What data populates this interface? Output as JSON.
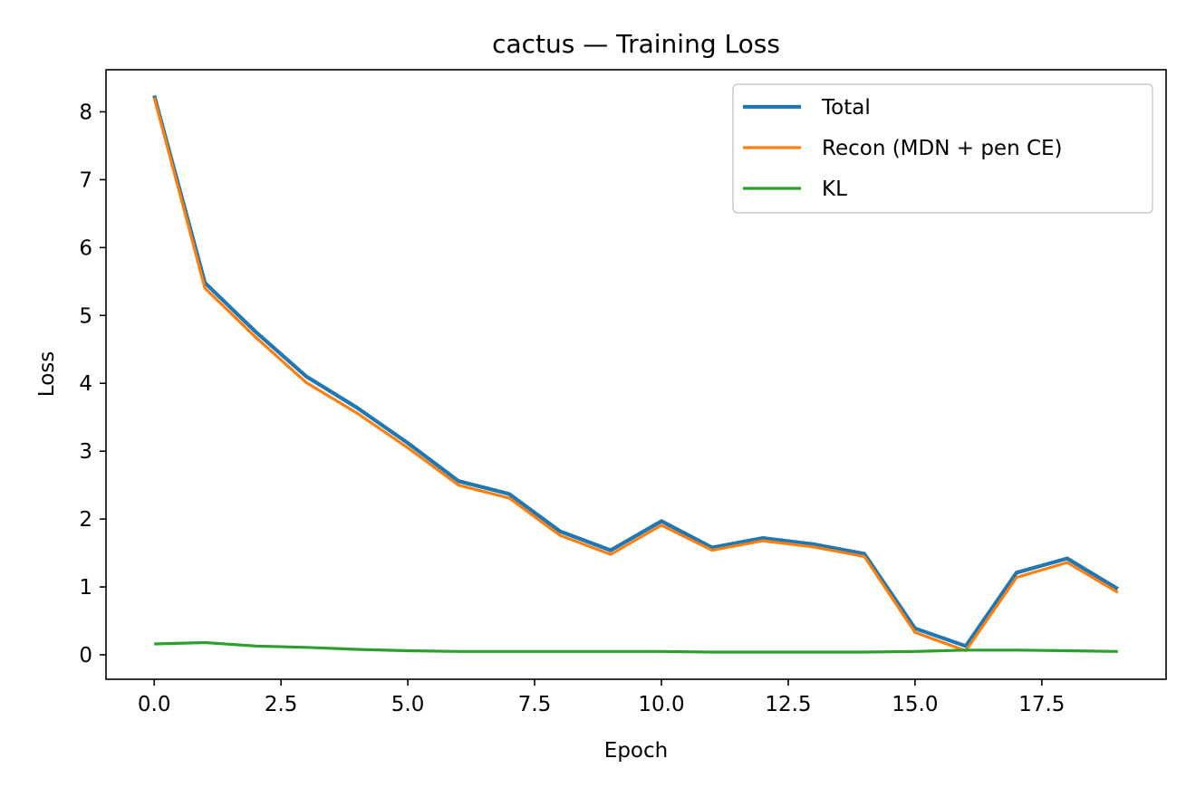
{
  "chart_data": {
    "type": "line",
    "title": "cactus — Training Loss",
    "xlabel": "Epoch",
    "ylabel": "Loss",
    "xlim": [
      -0.95,
      19.95
    ],
    "ylim": [
      -0.36,
      8.62
    ],
    "xticks": [
      0.0,
      2.5,
      5.0,
      7.5,
      10.0,
      12.5,
      15.0,
      17.5
    ],
    "xtick_labels": [
      "0.0",
      "2.5",
      "5.0",
      "7.5",
      "10.0",
      "12.5",
      "15.0",
      "17.5"
    ],
    "yticks": [
      0,
      1,
      2,
      3,
      4,
      5,
      6,
      7,
      8
    ],
    "ytick_labels": [
      "0",
      "1",
      "2",
      "3",
      "4",
      "5",
      "6",
      "7",
      "8"
    ],
    "grid": false,
    "legend_position": "top-right",
    "x": [
      0,
      1,
      2,
      3,
      4,
      5,
      6,
      7,
      8,
      9,
      10,
      11,
      12,
      13,
      14,
      15,
      16,
      17,
      18,
      19
    ],
    "series": [
      {
        "name": "Total",
        "color": "#1f77b4",
        "values": [
          8.24,
          5.48,
          4.76,
          4.1,
          3.64,
          3.12,
          2.56,
          2.37,
          1.82,
          1.54,
          1.97,
          1.58,
          1.72,
          1.63,
          1.49,
          0.39,
          0.13,
          1.21,
          1.42,
          0.97
        ]
      },
      {
        "name": "Recon (MDN + pen CE)",
        "color": "#ff7f0e",
        "values": [
          8.21,
          5.4,
          4.68,
          4.01,
          3.56,
          3.05,
          2.5,
          2.31,
          1.76,
          1.48,
          1.91,
          1.54,
          1.68,
          1.59,
          1.45,
          0.33,
          0.06,
          1.14,
          1.36,
          0.92
        ]
      },
      {
        "name": "KL",
        "color": "#2ca02c",
        "values": [
          0.16,
          0.18,
          0.13,
          0.11,
          0.08,
          0.06,
          0.05,
          0.05,
          0.05,
          0.05,
          0.05,
          0.04,
          0.04,
          0.04,
          0.04,
          0.05,
          0.07,
          0.07,
          0.06,
          0.05
        ]
      }
    ]
  }
}
